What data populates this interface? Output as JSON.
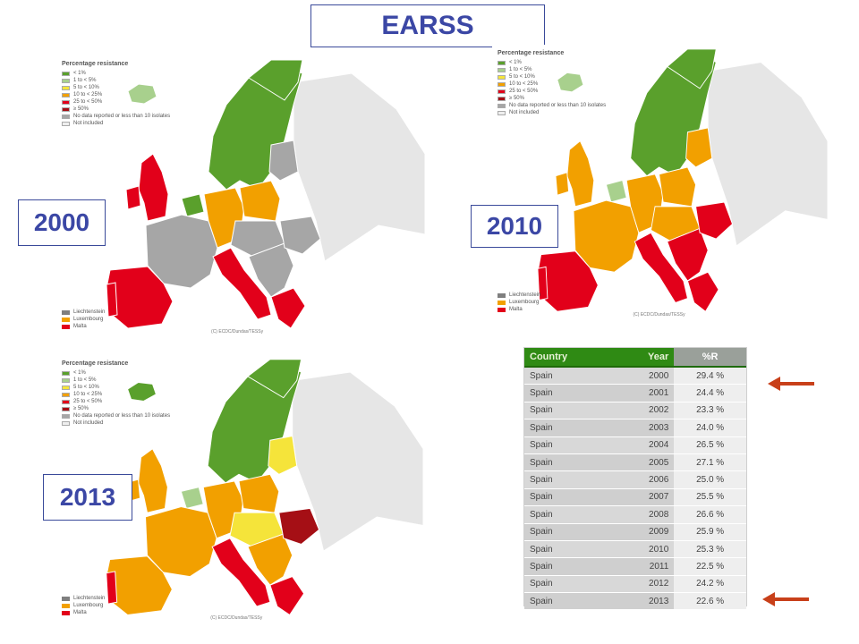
{
  "title": "EARSS",
  "legend": {
    "title": "Percentage resistance",
    "items": [
      {
        "label": "< 1%",
        "color": "#5aa02c"
      },
      {
        "label": "1 to < 5%",
        "color": "#a8d08d"
      },
      {
        "label": "5 to < 10%",
        "color": "#f5e43a"
      },
      {
        "label": "10 to < 25%",
        "color": "#f2a000"
      },
      {
        "label": "25 to < 50%",
        "color": "#e2001a"
      },
      {
        "label": "≥ 50%",
        "color": "#a50f15"
      },
      {
        "label": "No data reported or less than 10 isolates",
        "color": "#a6a6a6"
      },
      {
        "label": "Not included",
        "color": "#eeeeee"
      }
    ],
    "small_countries": [
      {
        "label": "Liechtenstein",
        "color": "#7f7f7f"
      },
      {
        "label": "Luxembourg",
        "color": "#f2a000"
      },
      {
        "label": "Malta",
        "color": "#e2001a"
      }
    ],
    "credit": "(C) ECDC/Dundas/TESSy"
  },
  "maps": [
    {
      "year": "2000",
      "colors": {
        "iberia": "#e2001a",
        "france": "#a6a6a6",
        "uk": "#e2001a",
        "ireland": "#e2001a",
        "italy": "#e2001a",
        "germany": "#f2a000",
        "central": "#a6a6a6",
        "poland": "#f2a000",
        "balkans": "#a6a6a6",
        "greece": "#e2001a",
        "romania": "#a6a6a6",
        "baltics": "#a6a6a6",
        "nordic": "#5aa02c",
        "iceland": "#a8d08d",
        "benelux": "#5aa02c",
        "portugal": "#e2001a"
      }
    },
    {
      "year": "2010",
      "colors": {
        "iberia": "#e2001a",
        "france": "#f2a000",
        "uk": "#f2a000",
        "ireland": "#f2a000",
        "italy": "#e2001a",
        "germany": "#f2a000",
        "central": "#f2a000",
        "poland": "#f2a000",
        "balkans": "#e2001a",
        "greece": "#e2001a",
        "romania": "#e2001a",
        "baltics": "#f2a000",
        "nordic": "#5aa02c",
        "iceland": "#a8d08d",
        "benelux": "#a8d08d",
        "portugal": "#e2001a"
      }
    },
    {
      "year": "2013",
      "colors": {
        "iberia": "#f2a000",
        "france": "#f2a000",
        "uk": "#f2a000",
        "ireland": "#f2a000",
        "italy": "#e2001a",
        "germany": "#f2a000",
        "central": "#f5e43a",
        "poland": "#f2a000",
        "balkans": "#f2a000",
        "greece": "#e2001a",
        "romania": "#a50f15",
        "baltics": "#f5e43a",
        "nordic": "#5aa02c",
        "iceland": "#5aa02c",
        "benelux": "#a8d08d",
        "portugal": "#e2001a"
      }
    }
  ],
  "table": {
    "headers": {
      "country": "Country",
      "year": "Year",
      "pr": "%R"
    },
    "rows": [
      {
        "country": "Spain",
        "year": "2000",
        "pr": "29.4 %"
      },
      {
        "country": "Spain",
        "year": "2001",
        "pr": "24.4 %"
      },
      {
        "country": "Spain",
        "year": "2002",
        "pr": "23.3 %"
      },
      {
        "country": "Spain",
        "year": "2003",
        "pr": "24.0 %"
      },
      {
        "country": "Spain",
        "year": "2004",
        "pr": "26.5 %"
      },
      {
        "country": "Spain",
        "year": "2005",
        "pr": "27.1 %"
      },
      {
        "country": "Spain",
        "year": "2006",
        "pr": "25.0 %"
      },
      {
        "country": "Spain",
        "year": "2007",
        "pr": "25.5 %"
      },
      {
        "country": "Spain",
        "year": "2008",
        "pr": "26.6 %"
      },
      {
        "country": "Spain",
        "year": "2009",
        "pr": "25.9 %"
      },
      {
        "country": "Spain",
        "year": "2010",
        "pr": "25.3 %"
      },
      {
        "country": "Spain",
        "year": "2011",
        "pr": "22.5 %"
      },
      {
        "country": "Spain",
        "year": "2012",
        "pr": "24.2 %"
      },
      {
        "country": "Spain",
        "year": "2013",
        "pr": "22.6 %"
      }
    ]
  },
  "arrow_color": "#c8401a"
}
